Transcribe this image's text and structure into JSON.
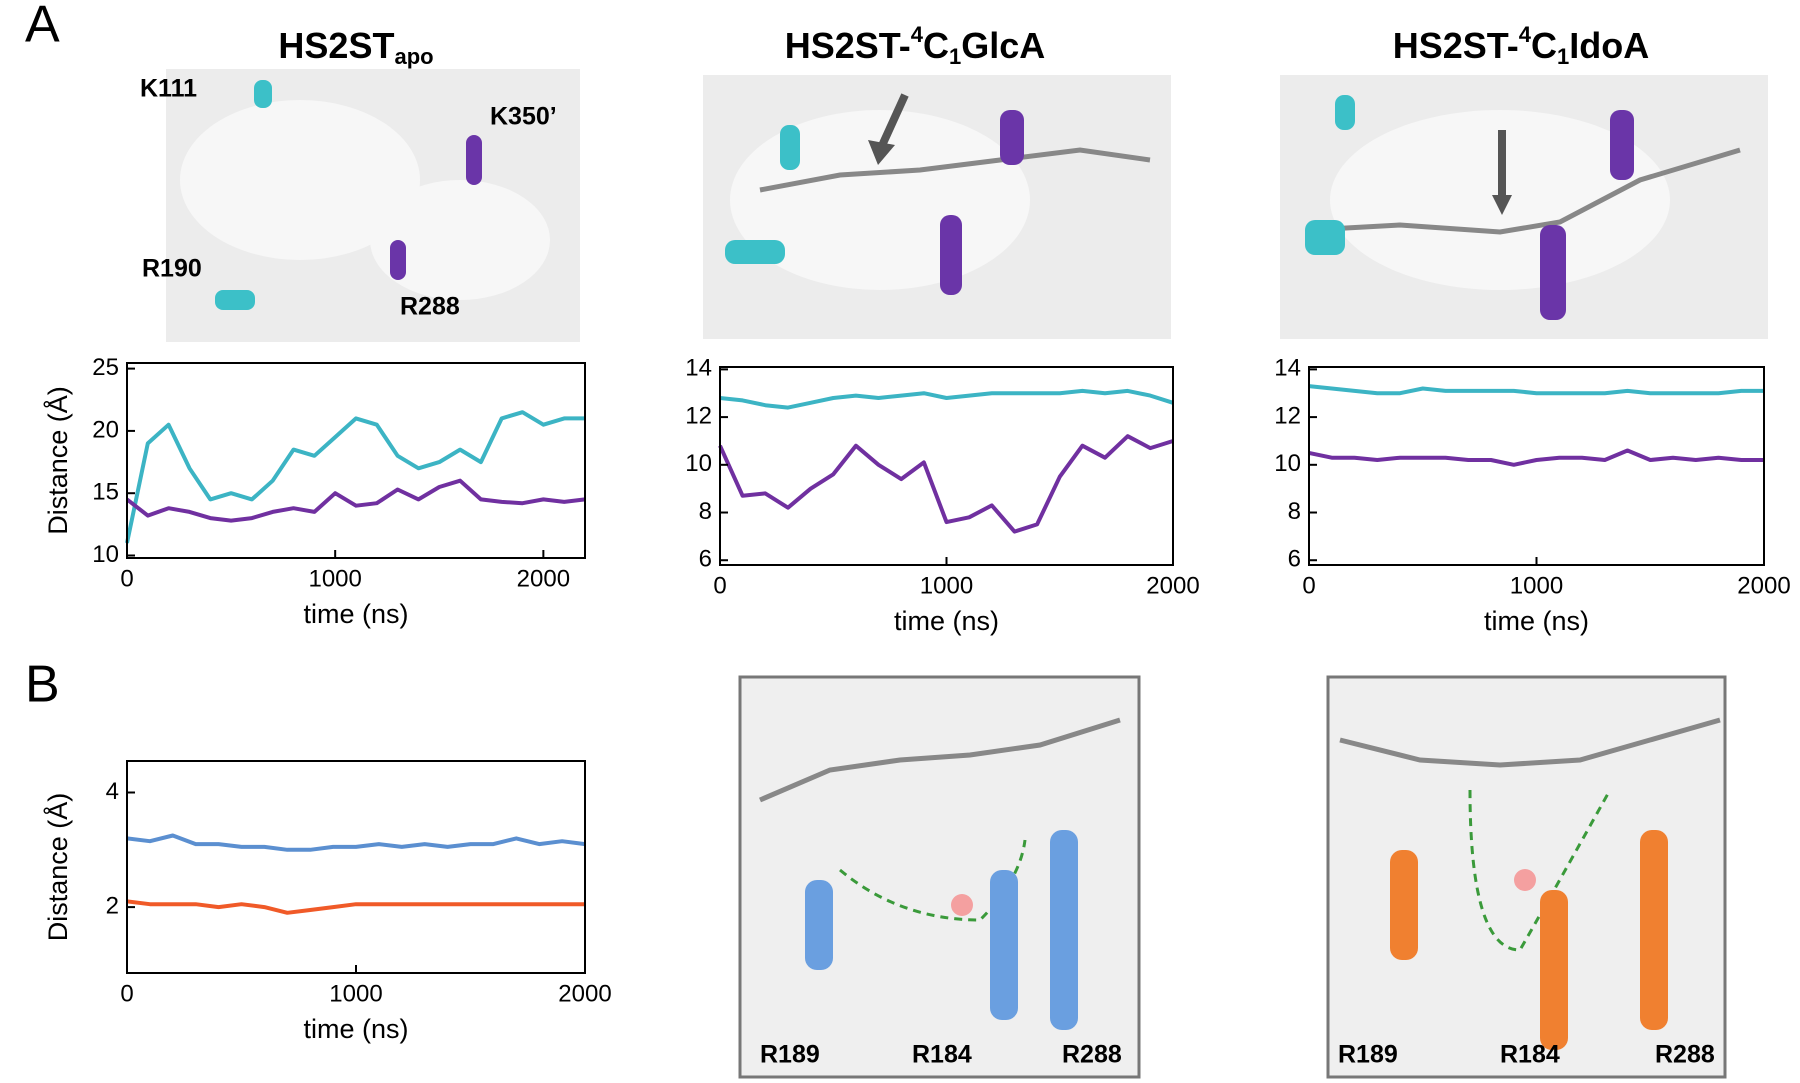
{
  "panel_labels": [
    "A",
    "B"
  ],
  "structures": [
    {
      "title_parts": [
        {
          "text": "HS2ST"
        },
        {
          "text": "apo",
          "sub": true
        }
      ],
      "labels": [
        {
          "text": "K111",
          "color": "#3cc0e0"
        },
        {
          "text": "K350’",
          "color": "#8040b0"
        },
        {
          "text": "R190",
          "color": "#3cc0e0"
        },
        {
          "text": "R288",
          "color": "#8040b0"
        }
      ]
    },
    {
      "title_parts": [
        {
          "text": "HS2ST-"
        },
        {
          "text": "4",
          "sup": true
        },
        {
          "text": "C"
        },
        {
          "text": "1",
          "sub": true
        },
        {
          "text": "GlcA"
        }
      ],
      "labels": []
    },
    {
      "title_parts": [
        {
          "text": "HS2ST-"
        },
        {
          "text": "4",
          "sup": true
        },
        {
          "text": "C"
        },
        {
          "text": "1",
          "sub": true
        },
        {
          "text": "IdoA"
        }
      ],
      "labels": []
    },
    {
      "labels": [
        {
          "text": "R189",
          "color": "#6a8fd0"
        },
        {
          "text": "R184",
          "color": "#6a8fd0"
        },
        {
          "text": "R288",
          "color": "#6a8fd0"
        }
      ]
    },
    {
      "labels": [
        {
          "text": "R189",
          "color": "#f08030"
        },
        {
          "text": "R184",
          "color": "#f08030"
        },
        {
          "text": "R288",
          "color": "#f08030"
        }
      ]
    }
  ],
  "chart_data": [
    {
      "type": "line",
      "xlabel": "time (ns)",
      "ylabel": "Distance (Å)",
      "x": [
        0,
        100,
        200,
        300,
        400,
        500,
        600,
        700,
        800,
        900,
        1000,
        1100,
        1200,
        1300,
        1400,
        1500,
        1600,
        1700,
        1800,
        1900,
        2000,
        2100,
        2200
      ],
      "xlim": [
        0,
        2200
      ],
      "xticks": [
        0,
        1000,
        2000
      ],
      "ylim": [
        9.8,
        25.45
      ],
      "yticks": [
        10,
        15,
        20,
        25
      ],
      "series": [
        {
          "color": "#3cb4c4",
          "values": [
            11,
            19,
            20.5,
            17,
            14.5,
            15,
            14.5,
            16,
            18.5,
            18,
            19.5,
            21,
            20.5,
            18,
            17,
            17.5,
            18.5,
            17.5,
            21,
            21.5,
            20.5,
            21,
            21
          ]
        },
        {
          "color": "#7030a0",
          "values": [
            14.5,
            13.2,
            13.8,
            13.5,
            13,
            12.8,
            13,
            13.5,
            13.8,
            13.5,
            15,
            14,
            14.2,
            15.3,
            14.5,
            15.5,
            16,
            14.5,
            14.3,
            14.2,
            14.5,
            14.3,
            14.5
          ]
        }
      ]
    },
    {
      "type": "line",
      "xlabel": "time (ns)",
      "x": [
        0,
        100,
        200,
        300,
        400,
        500,
        600,
        700,
        800,
        900,
        1000,
        1100,
        1200,
        1300,
        1400,
        1500,
        1600,
        1700,
        1800,
        1900,
        2000
      ],
      "xlim": [
        0,
        2000
      ],
      "xticks": [
        0,
        1000,
        2000
      ],
      "ylim": [
        5.8,
        14.1
      ],
      "yticks": [
        6,
        8,
        10,
        12,
        14
      ],
      "series": [
        {
          "color": "#3cb4c4",
          "values": [
            12.8,
            12.7,
            12.5,
            12.4,
            12.6,
            12.8,
            12.9,
            12.8,
            12.9,
            13.0,
            12.8,
            12.9,
            13.0,
            13.0,
            13.0,
            13.0,
            13.1,
            13.0,
            13.1,
            12.9,
            12.6
          ]
        },
        {
          "color": "#7030a0",
          "values": [
            10.8,
            8.7,
            8.8,
            8.2,
            9.0,
            9.6,
            10.8,
            10.0,
            9.4,
            10.1,
            7.6,
            7.8,
            8.3,
            7.2,
            7.5,
            9.5,
            10.8,
            10.3,
            11.2,
            10.7,
            11.0
          ]
        }
      ]
    },
    {
      "type": "line",
      "xlabel": "time (ns)",
      "x": [
        0,
        100,
        200,
        300,
        400,
        500,
        600,
        700,
        800,
        900,
        1000,
        1100,
        1200,
        1300,
        1400,
        1500,
        1600,
        1700,
        1800,
        1900,
        2000
      ],
      "xlim": [
        0,
        2000
      ],
      "xticks": [
        0,
        1000,
        2000
      ],
      "ylim": [
        5.8,
        14.1
      ],
      "yticks": [
        6,
        8,
        10,
        12,
        14
      ],
      "series": [
        {
          "color": "#3cb4c4",
          "values": [
            13.3,
            13.2,
            13.1,
            13.0,
            13.0,
            13.2,
            13.1,
            13.1,
            13.1,
            13.1,
            13.0,
            13.0,
            13.0,
            13.0,
            13.1,
            13.0,
            13.0,
            13.0,
            13.0,
            13.1,
            13.1
          ]
        },
        {
          "color": "#7030a0",
          "values": [
            10.5,
            10.3,
            10.3,
            10.2,
            10.3,
            10.3,
            10.3,
            10.2,
            10.2,
            10.0,
            10.2,
            10.3,
            10.3,
            10.2,
            10.6,
            10.2,
            10.3,
            10.2,
            10.3,
            10.2,
            10.2
          ]
        }
      ]
    },
    {
      "type": "line",
      "xlabel": "time (ns)",
      "ylabel": "Distance (Å)",
      "x": [
        0,
        100,
        200,
        300,
        400,
        500,
        600,
        700,
        800,
        900,
        1000,
        1100,
        1200,
        1300,
        1400,
        1500,
        1600,
        1700,
        1800,
        1900,
        2000
      ],
      "xlim": [
        0,
        2000
      ],
      "xticks": [
        0,
        1000,
        2000
      ],
      "ylim": [
        0.85,
        4.55
      ],
      "yticks": [
        2,
        4
      ],
      "series": [
        {
          "color": "#5b8fd0",
          "values": [
            3.2,
            3.15,
            3.25,
            3.1,
            3.1,
            3.05,
            3.05,
            3.0,
            3.0,
            3.05,
            3.05,
            3.1,
            3.05,
            3.1,
            3.05,
            3.1,
            3.1,
            3.2,
            3.1,
            3.15,
            3.1
          ]
        },
        {
          "color": "#f05a28",
          "values": [
            2.1,
            2.05,
            2.05,
            2.05,
            2.0,
            2.05,
            2.0,
            1.9,
            1.95,
            2.0,
            2.05,
            2.05,
            2.05,
            2.05,
            2.05,
            2.05,
            2.05,
            2.05,
            2.05,
            2.05,
            2.05
          ]
        }
      ]
    }
  ]
}
